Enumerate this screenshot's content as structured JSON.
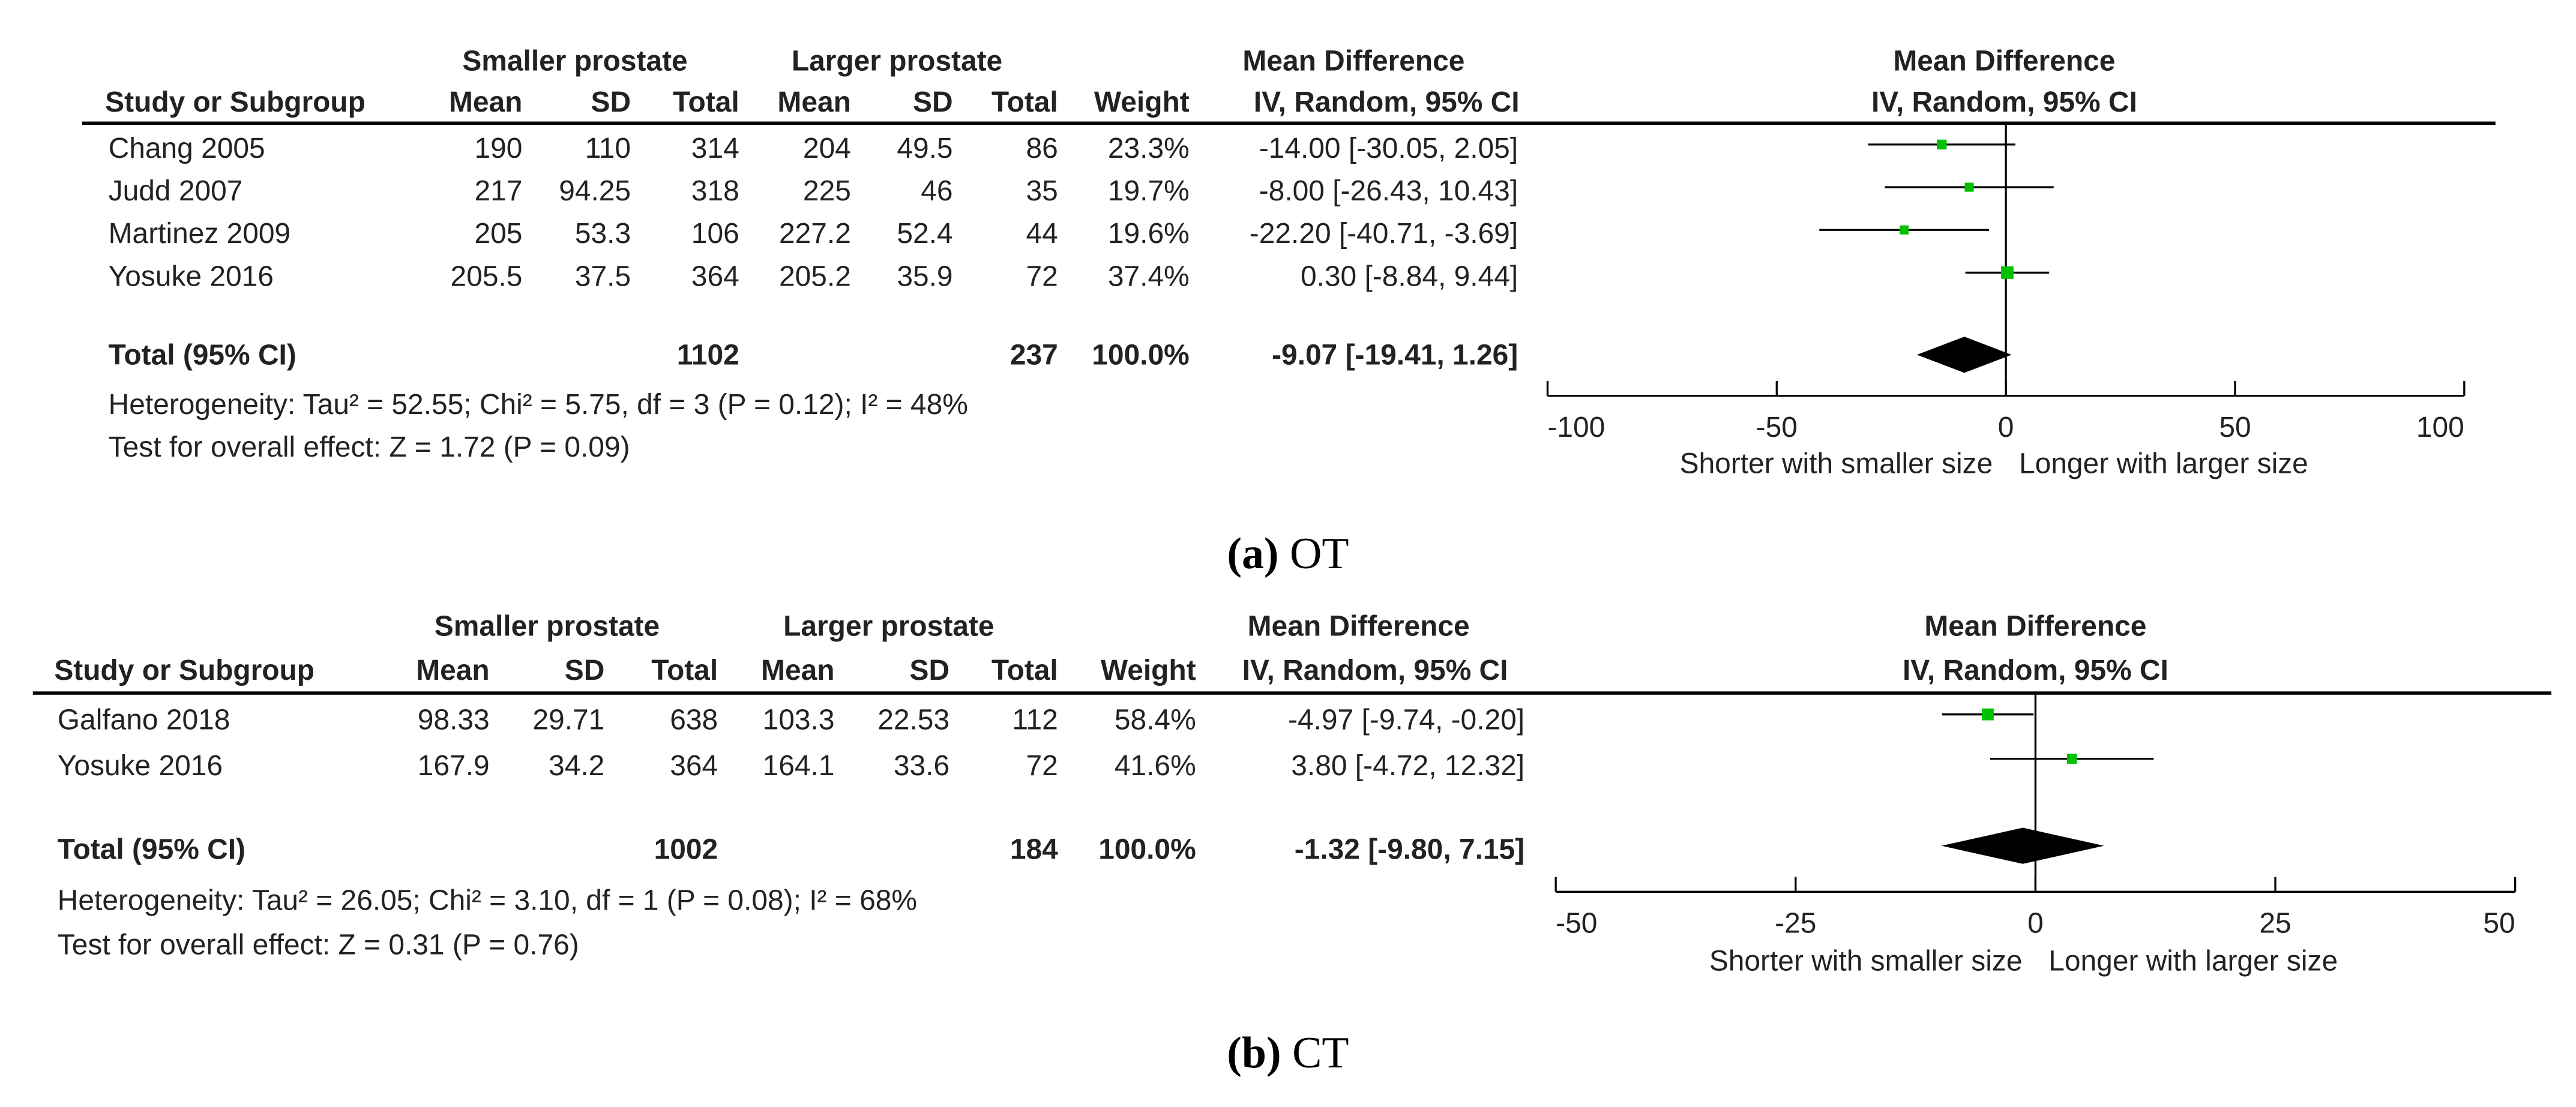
{
  "chart_data": [
    {
      "type": "forest",
      "caption_letter": "(a)",
      "caption_text": "OT",
      "group1_label": "Smaller prostate",
      "group2_label": "Larger prostate",
      "effect_title": "Mean Difference",
      "effect_subtitle": "IV, Random, 95% CI",
      "column_headers": [
        "Study or Subgroup",
        "Mean",
        "SD",
        "Total",
        "Mean",
        "SD",
        "Total",
        "Weight",
        "IV, Random, 95% CI"
      ],
      "studies": [
        {
          "name": "Chang 2005",
          "mean1": "190",
          "sd1": "110",
          "n1": "314",
          "mean2": "204",
          "sd2": "49.5",
          "n2": "86",
          "weight": "23.3%",
          "ci_text": "-14.00 [-30.05, 2.05]",
          "md": -14.0,
          "lo": -30.05,
          "hi": 2.05,
          "w": 23.3
        },
        {
          "name": "Judd 2007",
          "mean1": "217",
          "sd1": "94.25",
          "n1": "318",
          "mean2": "225",
          "sd2": "46",
          "n2": "35",
          "weight": "19.7%",
          "ci_text": "-8.00 [-26.43, 10.43]",
          "md": -8.0,
          "lo": -26.43,
          "hi": 10.43,
          "w": 19.7
        },
        {
          "name": "Martinez 2009",
          "mean1": "205",
          "sd1": "53.3",
          "n1": "106",
          "mean2": "227.2",
          "sd2": "52.4",
          "n2": "44",
          "weight": "19.6%",
          "ci_text": "-22.20 [-40.71, -3.69]",
          "md": -22.2,
          "lo": -40.71,
          "hi": -3.69,
          "w": 19.6
        },
        {
          "name": "Yosuke 2016",
          "mean1": "205.5",
          "sd1": "37.5",
          "n1": "364",
          "mean2": "205.2",
          "sd2": "35.9",
          "n2": "72",
          "weight": "37.4%",
          "ci_text": "0.30 [-8.84, 9.44]",
          "md": 0.3,
          "lo": -8.84,
          "hi": 9.44,
          "w": 37.4
        }
      ],
      "total": {
        "label": "Total (95% CI)",
        "n1": "1102",
        "n2": "237",
        "weight": "100.0%",
        "ci_text": "-9.07 [-19.41, 1.26]",
        "md": -9.07,
        "lo": -19.41,
        "hi": 1.26
      },
      "heterogeneity": "Heterogeneity: Tau² = 52.55; Chi² = 5.75, df = 3 (P = 0.12); I² = 48%",
      "overall_effect": "Test for overall effect: Z = 1.72 (P = 0.09)",
      "axis": {
        "xlim": [
          -100,
          100
        ],
        "ticks": [
          "-100",
          "-50",
          "0",
          "50",
          "100"
        ],
        "tick_values": [
          -100,
          -50,
          0,
          50,
          100
        ]
      },
      "favours_left": "Shorter with smaller size",
      "favours_right": "Longer with larger size",
      "colors": {
        "marker": "#00c000",
        "diamond": "#000000",
        "line": "#000000"
      }
    },
    {
      "type": "forest",
      "caption_letter": "(b)",
      "caption_text": "CT",
      "group1_label": "Smaller prostate",
      "group2_label": "Larger prostate",
      "effect_title": "Mean Difference",
      "effect_subtitle": "IV, Random, 95% CI",
      "column_headers": [
        "Study or Subgroup",
        "Mean",
        "SD",
        "Total",
        "Mean",
        "SD",
        "Total",
        "Weight",
        "IV, Random, 95% CI"
      ],
      "studies": [
        {
          "name": "Galfano 2018",
          "mean1": "98.33",
          "sd1": "29.71",
          "n1": "638",
          "mean2": "103.3",
          "sd2": "22.53",
          "n2": "112",
          "weight": "58.4%",
          "ci_text": "-4.97 [-9.74, -0.20]",
          "md": -4.97,
          "lo": -9.74,
          "hi": -0.2,
          "w": 58.4
        },
        {
          "name": "Yosuke 2016",
          "mean1": "167.9",
          "sd1": "34.2",
          "n1": "364",
          "mean2": "164.1",
          "sd2": "33.6",
          "n2": "72",
          "weight": "41.6%",
          "ci_text": "3.80 [-4.72, 12.32]",
          "md": 3.8,
          "lo": -4.72,
          "hi": 12.32,
          "w": 41.6
        }
      ],
      "total": {
        "label": "Total (95% CI)",
        "n1": "1002",
        "n2": "184",
        "weight": "100.0%",
        "ci_text": "-1.32 [-9.80, 7.15]",
        "md": -1.32,
        "lo": -9.8,
        "hi": 7.15
      },
      "heterogeneity": "Heterogeneity: Tau² = 26.05; Chi² = 3.10, df = 1 (P = 0.08); I² = 68%",
      "overall_effect": "Test for overall effect: Z = 0.31 (P = 0.76)",
      "axis": {
        "xlim": [
          -50,
          50
        ],
        "ticks": [
          "-50",
          "-25",
          "0",
          "25",
          "50"
        ],
        "tick_values": [
          -50,
          -25,
          0,
          25,
          50
        ]
      },
      "favours_left": "Shorter with smaller size",
      "favours_right": "Longer with larger size",
      "colors": {
        "marker": "#00c000",
        "diamond": "#000000",
        "line": "#000000"
      }
    }
  ]
}
